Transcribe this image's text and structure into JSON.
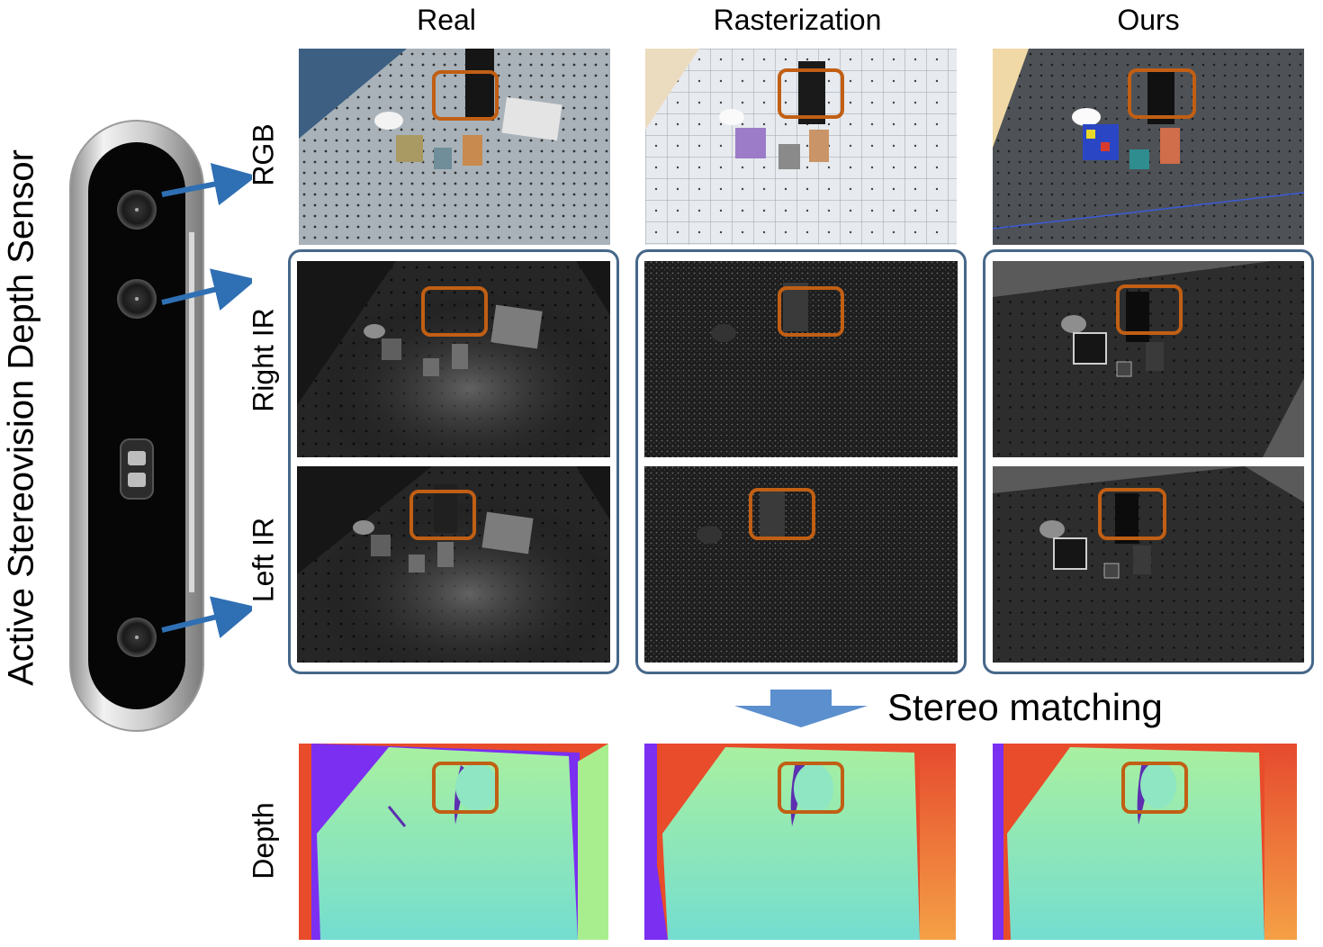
{
  "sensor_title": "Active Stereovision Depth Sensor",
  "columns": [
    "Real",
    "Rasterization",
    "Ours"
  ],
  "rows": [
    "RGB",
    "Right IR",
    "Left IR",
    "Depth"
  ],
  "process_label": "Stereo matching",
  "colors": {
    "frame": "#46678a",
    "highlight": "#c15f14",
    "arrow_blue": "#2f6fb3",
    "down_arrow": "#5b8fce"
  },
  "icons": [
    "depth-camera-icon",
    "arrow-right-icon",
    "arrow-down-icon"
  ]
}
